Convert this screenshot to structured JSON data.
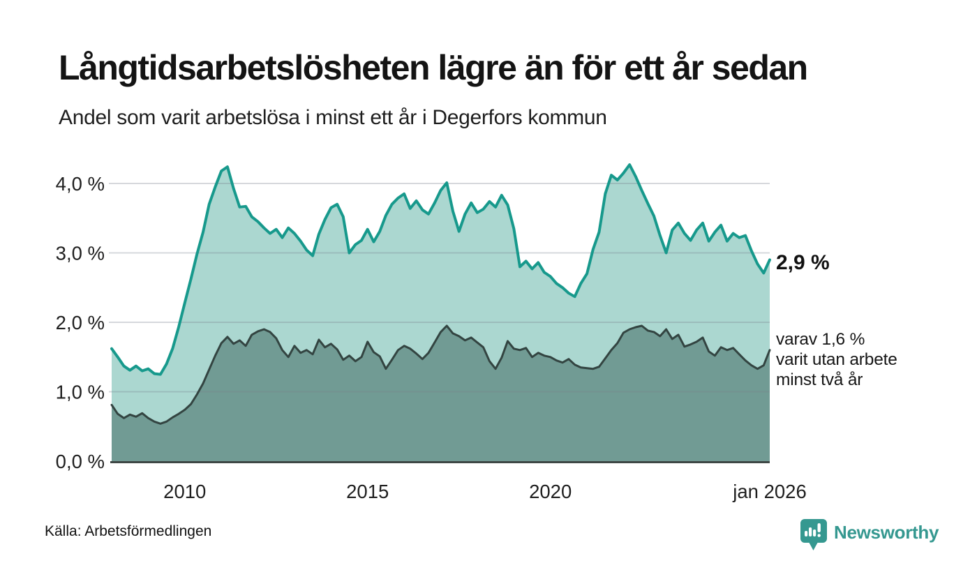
{
  "header": {
    "title": "Långtidsarbetslösheten lägre än för ett år sedan",
    "subtitle": "Andel som varit arbetslösa i minst ett år i Degerfors kommun"
  },
  "annotations": {
    "latest_value": "2,9 %",
    "secondary_lines": [
      "varav 1,6 %",
      "varit utan arbete",
      "minst två år"
    ]
  },
  "footer": {
    "source": "Källa: Arbetsförmedlingen",
    "brand": "Newsworthy"
  },
  "colors": {
    "accent_teal": "#17998c",
    "light_fill": "#abd7d0",
    "dark_line": "#334441",
    "dark_fill": "#719b94",
    "gridline": "rgba(120,125,140,0.30)",
    "axis_baseline": "#3e4745",
    "tick_text": "#1e1e1e",
    "brand_teal": "#359890"
  },
  "chart_data": {
    "type": "area",
    "title": "Långtidsarbetslösheten lägre än för ett år sedan",
    "subtitle": "Andel som varit arbetslösa i minst ett år i Degerfors kommun",
    "xlabel": "",
    "ylabel": "",
    "xlim": [
      2008,
      2026
    ],
    "ylim": [
      0,
      4.4
    ],
    "grid": true,
    "legend": "none (annotated directly on chart)",
    "x_step_years": 0.16667,
    "x_ticks": [
      {
        "year": 2010,
        "label": "2010"
      },
      {
        "year": 2015,
        "label": "2015"
      },
      {
        "year": 2020,
        "label": "2020"
      },
      {
        "year": 2026,
        "label": "jan 2026"
      }
    ],
    "y_ticks": [
      {
        "value": 0,
        "label": "0,0 %"
      },
      {
        "value": 1,
        "label": "1,0 %"
      },
      {
        "value": 2,
        "label": "2,0 %"
      },
      {
        "value": 3,
        "label": "3,0 %"
      },
      {
        "value": 4,
        "label": "4,0 %"
      }
    ],
    "series": [
      {
        "id": "unemployed-min-one-year",
        "latest_label": "2,9 %",
        "color": "#17998c",
        "fill": "#abd7d0",
        "stroke_width": 4,
        "values": [
          1.62,
          1.5,
          1.37,
          1.31,
          1.37,
          1.3,
          1.33,
          1.26,
          1.25,
          1.4,
          1.62,
          1.93,
          2.28,
          2.62,
          2.98,
          3.3,
          3.7,
          3.95,
          4.18,
          4.24,
          3.93,
          3.66,
          3.67,
          3.52,
          3.45,
          3.36,
          3.28,
          3.34,
          3.22,
          3.36,
          3.28,
          3.17,
          3.04,
          2.96,
          3.27,
          3.48,
          3.65,
          3.7,
          3.52,
          3.0,
          3.12,
          3.18,
          3.34,
          3.16,
          3.31,
          3.54,
          3.7,
          3.79,
          3.85,
          3.64,
          3.75,
          3.62,
          3.56,
          3.72,
          3.9,
          4.01,
          3.6,
          3.31,
          3.56,
          3.72,
          3.58,
          3.63,
          3.74,
          3.66,
          3.83,
          3.69,
          3.35,
          2.8,
          2.88,
          2.77,
          2.86,
          2.72,
          2.66,
          2.56,
          2.5,
          2.42,
          2.37,
          2.56,
          2.7,
          3.05,
          3.3,
          3.85,
          4.12,
          4.05,
          4.15,
          4.27,
          4.1,
          3.9,
          3.71,
          3.53,
          3.25,
          3.0,
          3.33,
          3.43,
          3.28,
          3.18,
          3.33,
          3.43,
          3.17,
          3.3,
          3.4,
          3.17,
          3.28,
          3.22,
          3.25,
          3.03,
          2.84,
          2.71,
          2.9
        ]
      },
      {
        "id": "unemployed-min-two-years",
        "latest_label": "varav 1,6 %",
        "color": "#334441",
        "fill": "#719b94",
        "stroke_width": 3,
        "values": [
          0.81,
          0.68,
          0.62,
          0.67,
          0.64,
          0.69,
          0.62,
          0.57,
          0.54,
          0.57,
          0.63,
          0.68,
          0.74,
          0.82,
          0.96,
          1.12,
          1.32,
          1.52,
          1.7,
          1.79,
          1.69,
          1.74,
          1.66,
          1.82,
          1.87,
          1.9,
          1.86,
          1.77,
          1.6,
          1.5,
          1.66,
          1.56,
          1.6,
          1.54,
          1.75,
          1.64,
          1.69,
          1.61,
          1.46,
          1.52,
          1.44,
          1.5,
          1.72,
          1.57,
          1.51,
          1.33,
          1.46,
          1.6,
          1.66,
          1.62,
          1.55,
          1.47,
          1.56,
          1.71,
          1.86,
          1.95,
          1.84,
          1.8,
          1.74,
          1.78,
          1.71,
          1.64,
          1.44,
          1.33,
          1.49,
          1.73,
          1.62,
          1.6,
          1.63,
          1.5,
          1.56,
          1.52,
          1.5,
          1.45,
          1.42,
          1.47,
          1.39,
          1.35,
          1.34,
          1.33,
          1.36,
          1.48,
          1.6,
          1.7,
          1.85,
          1.9,
          1.93,
          1.95,
          1.88,
          1.86,
          1.8,
          1.9,
          1.76,
          1.82,
          1.65,
          1.68,
          1.72,
          1.78,
          1.58,
          1.52,
          1.64,
          1.6,
          1.63,
          1.54,
          1.45,
          1.38,
          1.33,
          1.38,
          1.6
        ]
      }
    ]
  }
}
